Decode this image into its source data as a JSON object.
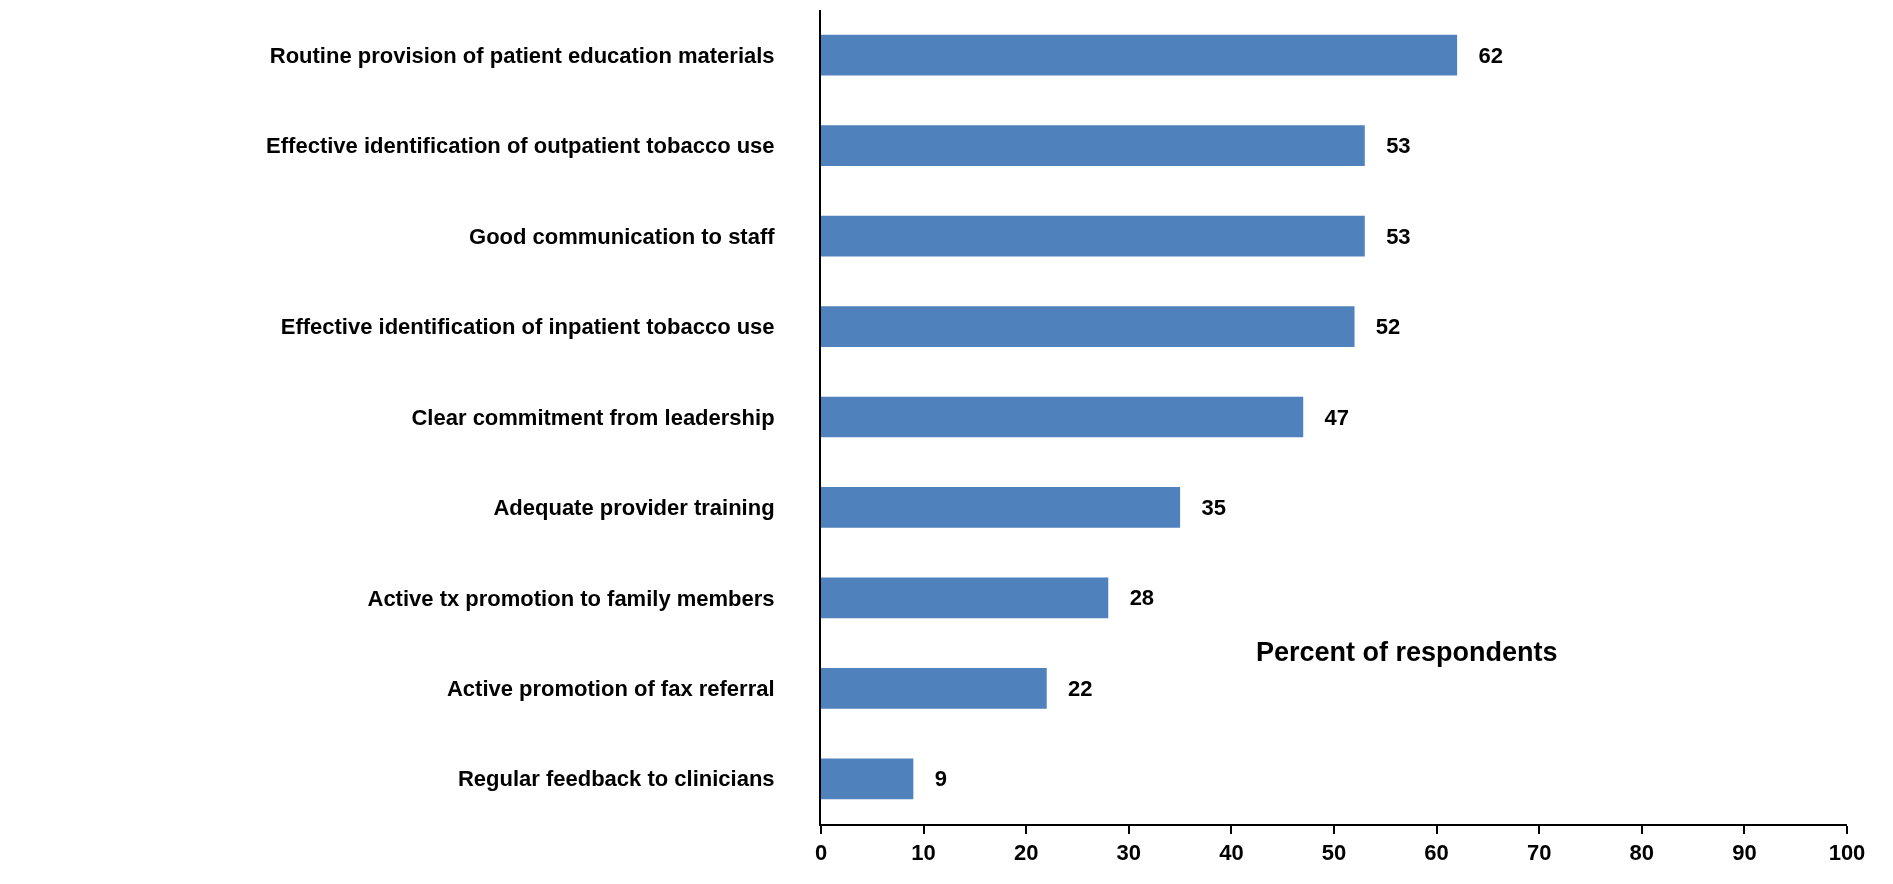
{
  "chart_data": {
    "type": "bar",
    "orientation": "horizontal",
    "xlabel": "Percent of respondents",
    "categories": [
      "Routine provision of patient education materials",
      "Effective identification of outpatient tobacco use",
      "Good communication to staff",
      "Effective identification of inpatient tobacco use",
      "Clear commitment from leadership",
      "Adequate provider training",
      "Active tx promotion to family members",
      "Active promotion of fax referral",
      "Regular feedback to clinicians"
    ],
    "values": [
      62,
      53,
      53,
      52,
      47,
      35,
      28,
      22,
      9
    ],
    "color": "#4f81bd",
    "xlim": [
      0,
      100
    ],
    "xticks": [
      0,
      10,
      20,
      30,
      40,
      50,
      60,
      70,
      80,
      90,
      100
    ],
    "data_labels": true,
    "grid": false
  }
}
